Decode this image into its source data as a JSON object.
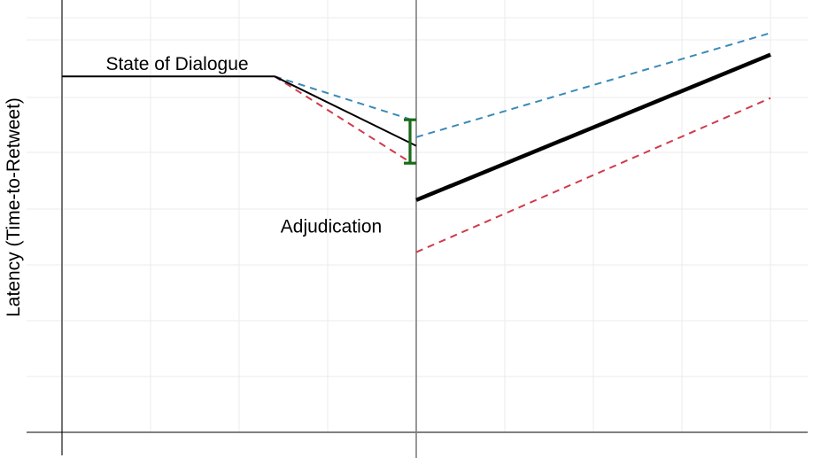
{
  "chart_data": {
    "type": "line",
    "title": "",
    "xlabel": "",
    "ylabel": "Latency (Time-to-Retweet)",
    "xlim": [
      0,
      10
    ],
    "ylim": [
      0,
      10
    ],
    "grid": true,
    "vertical_marker": {
      "x": 4,
      "color": "#7f7f7f"
    },
    "series": [
      {
        "role": "pre-trend",
        "color": "#000000",
        "style": "solid",
        "weight": "thin",
        "x": [
          0,
          2.4
        ],
        "y": [
          8.2,
          8.2
        ]
      },
      {
        "role": "upper",
        "color": "#3a8ab8",
        "style": "dashed",
        "weight": "thin",
        "x": [
          2.4,
          3.95
        ],
        "y": [
          8.2,
          7.2
        ]
      },
      {
        "role": "lower",
        "color": "#d03a4c",
        "style": "dashed",
        "weight": "thin",
        "x": [
          2.4,
          3.95
        ],
        "y": [
          8.2,
          6.2
        ]
      },
      {
        "role": "central",
        "color": "#000000",
        "style": "solid",
        "weight": "thin",
        "x": [
          2.4,
          4.0
        ],
        "y": [
          8.2,
          6.6
        ]
      },
      {
        "role": "upper",
        "color": "#3a8ab8",
        "style": "dashed",
        "weight": "thin",
        "x": [
          4.0,
          8.0
        ],
        "y": [
          6.8,
          9.2
        ]
      },
      {
        "role": "central",
        "color": "#000000",
        "style": "solid",
        "weight": "thick",
        "x": [
          4.0,
          8.0
        ],
        "y": [
          5.35,
          8.7
        ]
      },
      {
        "role": "lower",
        "color": "#d03a4c",
        "style": "dashed",
        "weight": "thin",
        "x": [
          4.0,
          8.0
        ],
        "y": [
          4.15,
          7.7
        ]
      }
    ],
    "error_bar": {
      "x": 3.93,
      "y_low": 6.2,
      "y_high": 7.2,
      "color": "#1a6b1a"
    },
    "annotations": [
      {
        "text": "State of Dialogue",
        "x": 1.3,
        "y": 8.35
      },
      {
        "text": "Adjudication",
        "x": 3.04,
        "y": 4.6
      }
    ]
  }
}
